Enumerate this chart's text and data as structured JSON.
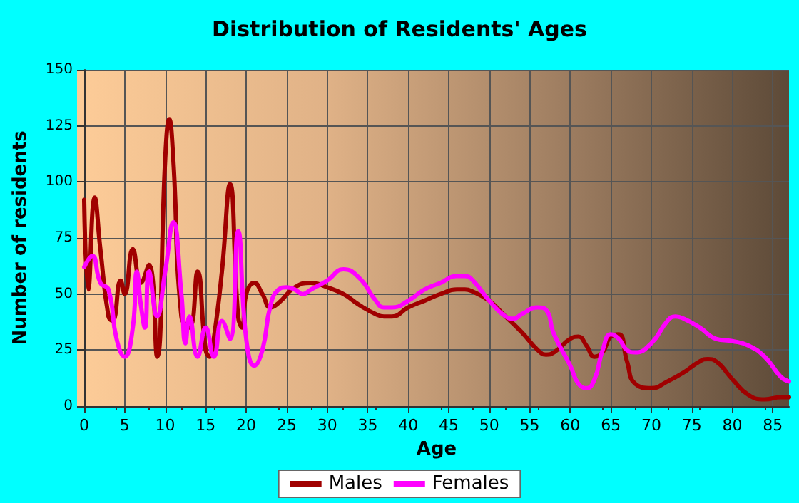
{
  "chart_data": {
    "type": "line",
    "title": "Distribution of Residents' Ages",
    "xlabel": "Age",
    "ylabel": "Number of residents",
    "xlim": [
      0,
      87
    ],
    "xticks": [
      0,
      5,
      10,
      15,
      20,
      25,
      30,
      35,
      40,
      45,
      50,
      55,
      60,
      65,
      70,
      75,
      80,
      85
    ],
    "ylim": [
      0,
      150
    ],
    "yticks": [
      0,
      25,
      50,
      75,
      100,
      125,
      150
    ],
    "grid": true,
    "legend": "bottom",
    "marker": "none",
    "line_style": "solid",
    "series": [
      {
        "name": "Males",
        "color": "#a00000",
        "x": [
          0,
          0.5,
          1.3,
          2,
          3,
          3.5,
          4.5,
          5,
          6,
          7,
          8,
          9,
          10,
          10.5,
          11,
          12,
          13,
          14,
          15,
          15.5,
          16,
          17,
          18,
          19,
          19.5,
          20,
          21,
          22,
          23,
          24,
          26,
          28,
          30,
          32,
          34,
          36,
          37,
          38,
          40,
          42,
          44,
          46,
          47,
          48,
          50,
          52,
          54,
          56,
          57,
          58,
          60,
          61,
          62,
          63,
          64,
          65,
          66,
          67,
          68,
          70,
          72,
          74,
          76,
          77,
          78,
          80,
          82,
          84,
          86,
          87
        ],
        "values": [
          92,
          52,
          93,
          70,
          40,
          38,
          56,
          50,
          70,
          55,
          63,
          22,
          110,
          128,
          110,
          40,
          35,
          60,
          25,
          22,
          30,
          60,
          99,
          40,
          35,
          50,
          55,
          50,
          44,
          46,
          53,
          55,
          53,
          50,
          45,
          41,
          40,
          40,
          44,
          47,
          50,
          52,
          52,
          51,
          47,
          40,
          33,
          25,
          23,
          24,
          30,
          31,
          27,
          22,
          24,
          31,
          32,
          20,
          10,
          8,
          11,
          15,
          20,
          21,
          20,
          12,
          5,
          3,
          4,
          4
        ]
      },
      {
        "name": "Females",
        "color": "#ff00ff",
        "x": [
          0,
          1,
          2,
          3,
          4,
          5,
          6,
          6.5,
          7,
          7.5,
          8,
          9,
          10,
          11,
          12,
          12.5,
          13,
          14,
          15,
          16,
          17,
          18,
          19,
          20,
          21,
          22,
          23,
          24,
          25,
          26,
          27,
          28,
          30,
          32,
          34,
          36,
          37,
          38,
          40,
          42,
          44,
          46,
          47,
          48,
          50,
          52,
          53,
          54,
          56,
          57,
          58,
          60,
          61,
          62,
          63,
          64,
          65,
          66,
          67,
          68,
          70,
          72,
          73,
          74,
          76,
          78,
          80,
          82,
          84,
          86,
          87
        ],
        "values": [
          62,
          67,
          55,
          52,
          30,
          22,
          35,
          60,
          45,
          35,
          60,
          40,
          60,
          82,
          50,
          28,
          40,
          22,
          35,
          22,
          38,
          30,
          78,
          30,
          18,
          25,
          45,
          52,
          53,
          52,
          50,
          52,
          56,
          61,
          57,
          47,
          44,
          44,
          47,
          52,
          55,
          58,
          58,
          56,
          47,
          40,
          39,
          41,
          44,
          43,
          32,
          18,
          10,
          8,
          12,
          25,
          32,
          30,
          25,
          24,
          28,
          38,
          40,
          39,
          35,
          30,
          29,
          27,
          22,
          13,
          11
        ]
      }
    ]
  }
}
